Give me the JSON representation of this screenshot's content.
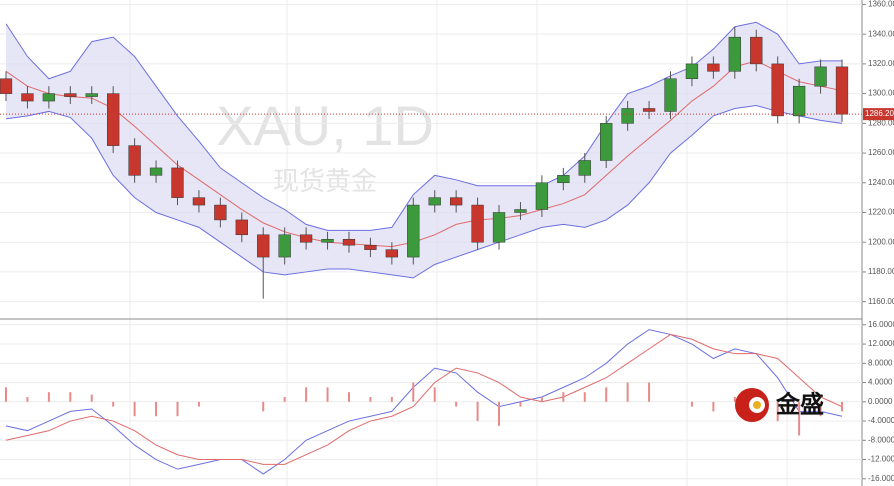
{
  "chart_data": [
    {
      "type": "candlestick",
      "watermark": "XAU, 1D",
      "watermark_sub": "现货黄金",
      "up_color": "#3c9a3c",
      "down_color": "#c8372d",
      "open": [
        1310,
        1300,
        1295,
        1300,
        1298,
        1300,
        1265,
        1245,
        1250,
        1230,
        1225,
        1215,
        1205,
        1190,
        1205,
        1200,
        1202,
        1198,
        1195,
        1190,
        1225,
        1230,
        1225,
        1200,
        1220,
        1222,
        1240,
        1245,
        1255,
        1280,
        1290,
        1288,
        1310,
        1320,
        1315,
        1338,
        1320,
        1285,
        1305,
        1318
      ],
      "high": [
        1315,
        1305,
        1305,
        1305,
        1305,
        1305,
        1270,
        1255,
        1255,
        1235,
        1230,
        1220,
        1210,
        1210,
        1210,
        1207,
        1207,
        1203,
        1200,
        1230,
        1235,
        1235,
        1230,
        1225,
        1227,
        1245,
        1250,
        1260,
        1285,
        1295,
        1295,
        1315,
        1325,
        1325,
        1345,
        1343,
        1325,
        1310,
        1323,
        1323
      ],
      "low": [
        1295,
        1290,
        1290,
        1293,
        1293,
        1260,
        1240,
        1240,
        1225,
        1220,
        1210,
        1200,
        1162,
        1185,
        1195,
        1195,
        1193,
        1190,
        1185,
        1185,
        1220,
        1220,
        1195,
        1195,
        1215,
        1217,
        1235,
        1240,
        1250,
        1275,
        1283,
        1283,
        1305,
        1310,
        1310,
        1315,
        1280,
        1280,
        1300,
        1281
      ],
      "close": [
        1300,
        1295,
        1300,
        1298,
        1300,
        1265,
        1245,
        1250,
        1230,
        1225,
        1215,
        1205,
        1190,
        1205,
        1200,
        1202,
        1198,
        1195,
        1190,
        1225,
        1230,
        1225,
        1200,
        1220,
        1222,
        1240,
        1245,
        1255,
        1280,
        1290,
        1288,
        1310,
        1320,
        1315,
        1338,
        1320,
        1285,
        1305,
        1318,
        1286.2
      ],
      "series": [
        {
          "color": "#6b6fe0",
          "values": [
            1347,
            1325,
            1310,
            1315,
            1335,
            1338,
            1325,
            1305,
            1285,
            1268,
            1250,
            1240,
            1230,
            1222,
            1212,
            1208,
            1208,
            1208,
            1210,
            1232,
            1245,
            1242,
            1238,
            1238,
            1238,
            1238,
            1245,
            1258,
            1280,
            1300,
            1305,
            1312,
            1318,
            1330,
            1345,
            1348,
            1340,
            1320,
            1322,
            1322
          ]
        },
        {
          "color": "#e06a6a",
          "values": [
            1315,
            1305,
            1300,
            1298,
            1297,
            1290,
            1278,
            1265,
            1252,
            1242,
            1232,
            1222,
            1213,
            1207,
            1203,
            1200,
            1199,
            1198,
            1197,
            1200,
            1205,
            1212,
            1215,
            1216,
            1218,
            1222,
            1226,
            1232,
            1245,
            1258,
            1270,
            1282,
            1295,
            1305,
            1318,
            1322,
            1315,
            1308,
            1305,
            1302
          ]
        },
        {
          "color": "#6b6fe0",
          "values": [
            1283,
            1285,
            1288,
            1284,
            1270,
            1245,
            1230,
            1220,
            1215,
            1210,
            1200,
            1190,
            1180,
            1178,
            1180,
            1182,
            1182,
            1180,
            1178,
            1176,
            1185,
            1190,
            1195,
            1200,
            1205,
            1210,
            1212,
            1210,
            1215,
            1225,
            1240,
            1260,
            1272,
            1285,
            1290,
            1292,
            1288,
            1285,
            1282,
            1280
          ]
        }
      ],
      "band_fill": "#dcdcf2",
      "last_price": {
        "value": 1286.2,
        "label": "1286.20"
      },
      "ylim": [
        1149,
        1363
      ],
      "yticks": [
        {
          "value": 1160,
          "label": "1160.00"
        },
        {
          "value": 1180,
          "label": "1180.00"
        },
        {
          "value": 1200,
          "label": "1200.00"
        },
        {
          "value": 1220,
          "label": "1220.00"
        },
        {
          "value": 1240,
          "label": "1240.00"
        },
        {
          "value": 1260,
          "label": "1260.00"
        },
        {
          "value": 1280,
          "label": "1280.00"
        },
        {
          "value": 1300,
          "label": "1300.00"
        },
        {
          "value": 1320,
          "label": "1320.00"
        },
        {
          "value": 1340,
          "label": "1340.00"
        },
        {
          "value": 1360,
          "label": "1360.00"
        }
      ],
      "grid": true
    },
    {
      "type": "macd",
      "logo": "金盛",
      "series": [
        {
          "style": "line",
          "color": "#6b6fe0",
          "values": [
            -5,
            -6,
            -4,
            -2,
            -1.5,
            -5,
            -9,
            -12,
            -14,
            -13,
            -12,
            -12,
            -15,
            -12,
            -8,
            -6,
            -4,
            -3,
            -2,
            3,
            7,
            6,
            2,
            -1,
            0,
            1,
            3,
            5,
            8,
            12,
            15,
            14,
            12,
            9,
            11,
            10,
            5,
            -2,
            -2,
            -3
          ]
        },
        {
          "style": "line",
          "color": "#e06a6a",
          "values": [
            -8,
            -7,
            -6,
            -4,
            -3,
            -4,
            -6,
            -9,
            -11,
            -12,
            -12,
            -12,
            -13,
            -13,
            -11,
            -9,
            -6,
            -4,
            -3,
            -1,
            4,
            7,
            6,
            4,
            1,
            0,
            1,
            3,
            5,
            8,
            11,
            14,
            13,
            11,
            10,
            10,
            9,
            5,
            1,
            -1
          ]
        },
        {
          "style": "bar",
          "color": "#e88a8a",
          "values": [
            3,
            1,
            2,
            2,
            1.5,
            -1,
            -3,
            -3,
            -3,
            -1,
            0,
            0,
            -2,
            1,
            3,
            3,
            2,
            1,
            1,
            4,
            3,
            -1,
            -4,
            -5,
            -1,
            1,
            2,
            2,
            3,
            4,
            4,
            0,
            -1,
            -2,
            1,
            0,
            -4,
            -7,
            -3,
            -2
          ]
        }
      ],
      "ylim": [
        -17.5,
        17
      ],
      "yticks": [
        {
          "value": 16,
          "label": "16.0000"
        },
        {
          "value": 12,
          "label": "12.0000"
        },
        {
          "value": 8,
          "label": "8.0000"
        },
        {
          "value": 4,
          "label": "4.0000"
        },
        {
          "value": 0,
          "label": "0.0000"
        },
        {
          "value": -4,
          "label": "-4.0000"
        },
        {
          "value": -8,
          "label": "-8.0000"
        },
        {
          "value": -12,
          "label": "-12.0000"
        },
        {
          "value": -16,
          "label": "-16.0000"
        }
      ],
      "grid": true
    }
  ]
}
